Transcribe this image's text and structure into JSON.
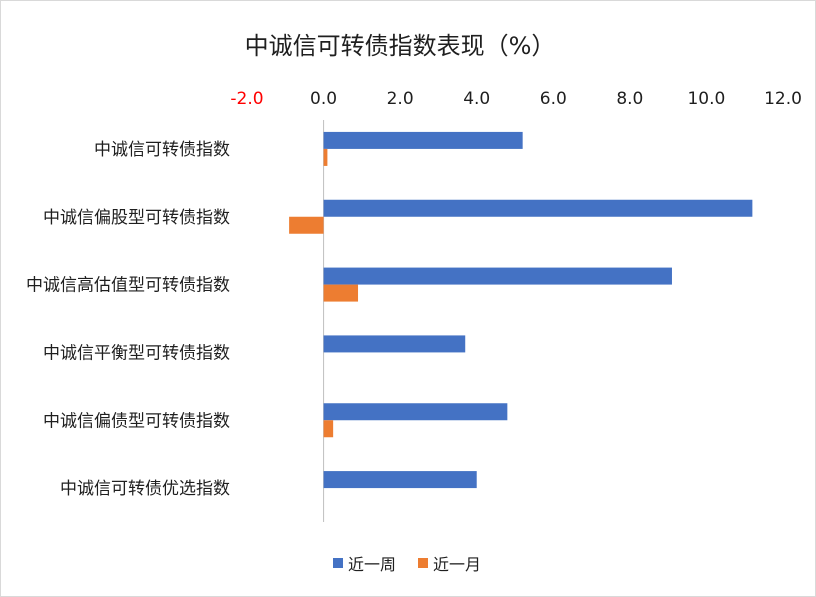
{
  "chart_data": {
    "type": "bar",
    "orientation": "horizontal",
    "title": "中诚信可转债指数表现（%）",
    "categories": [
      "中诚信可转债指数",
      "中诚信偏股型可转债指数",
      "中诚信高估值型可转债指数",
      "中诚信平衡型可转债指数",
      "中诚信偏债型可转债指数",
      "中诚信可转债优选指数"
    ],
    "series": [
      {
        "name": "近一周",
        "color": "#4472c4",
        "values": [
          5.2,
          11.2,
          9.1,
          3.7,
          4.8,
          4.0
        ]
      },
      {
        "name": "近一月",
        "color": "#ed7d31",
        "values": [
          0.1,
          -0.9,
          0.9,
          0.0,
          0.25,
          0.0
        ]
      }
    ],
    "xlim": [
      -2.0,
      12.0
    ],
    "xticks": [
      "-2.0",
      "0.0",
      "2.0",
      "4.0",
      "6.0",
      "8.0",
      "10.0",
      "12.0"
    ],
    "xtick_values": [
      -2,
      0,
      2,
      4,
      6,
      8,
      10,
      12
    ],
    "negative_tick_color": "#ff0000",
    "axis_position": "top",
    "grid": false,
    "legend": "bottom"
  }
}
